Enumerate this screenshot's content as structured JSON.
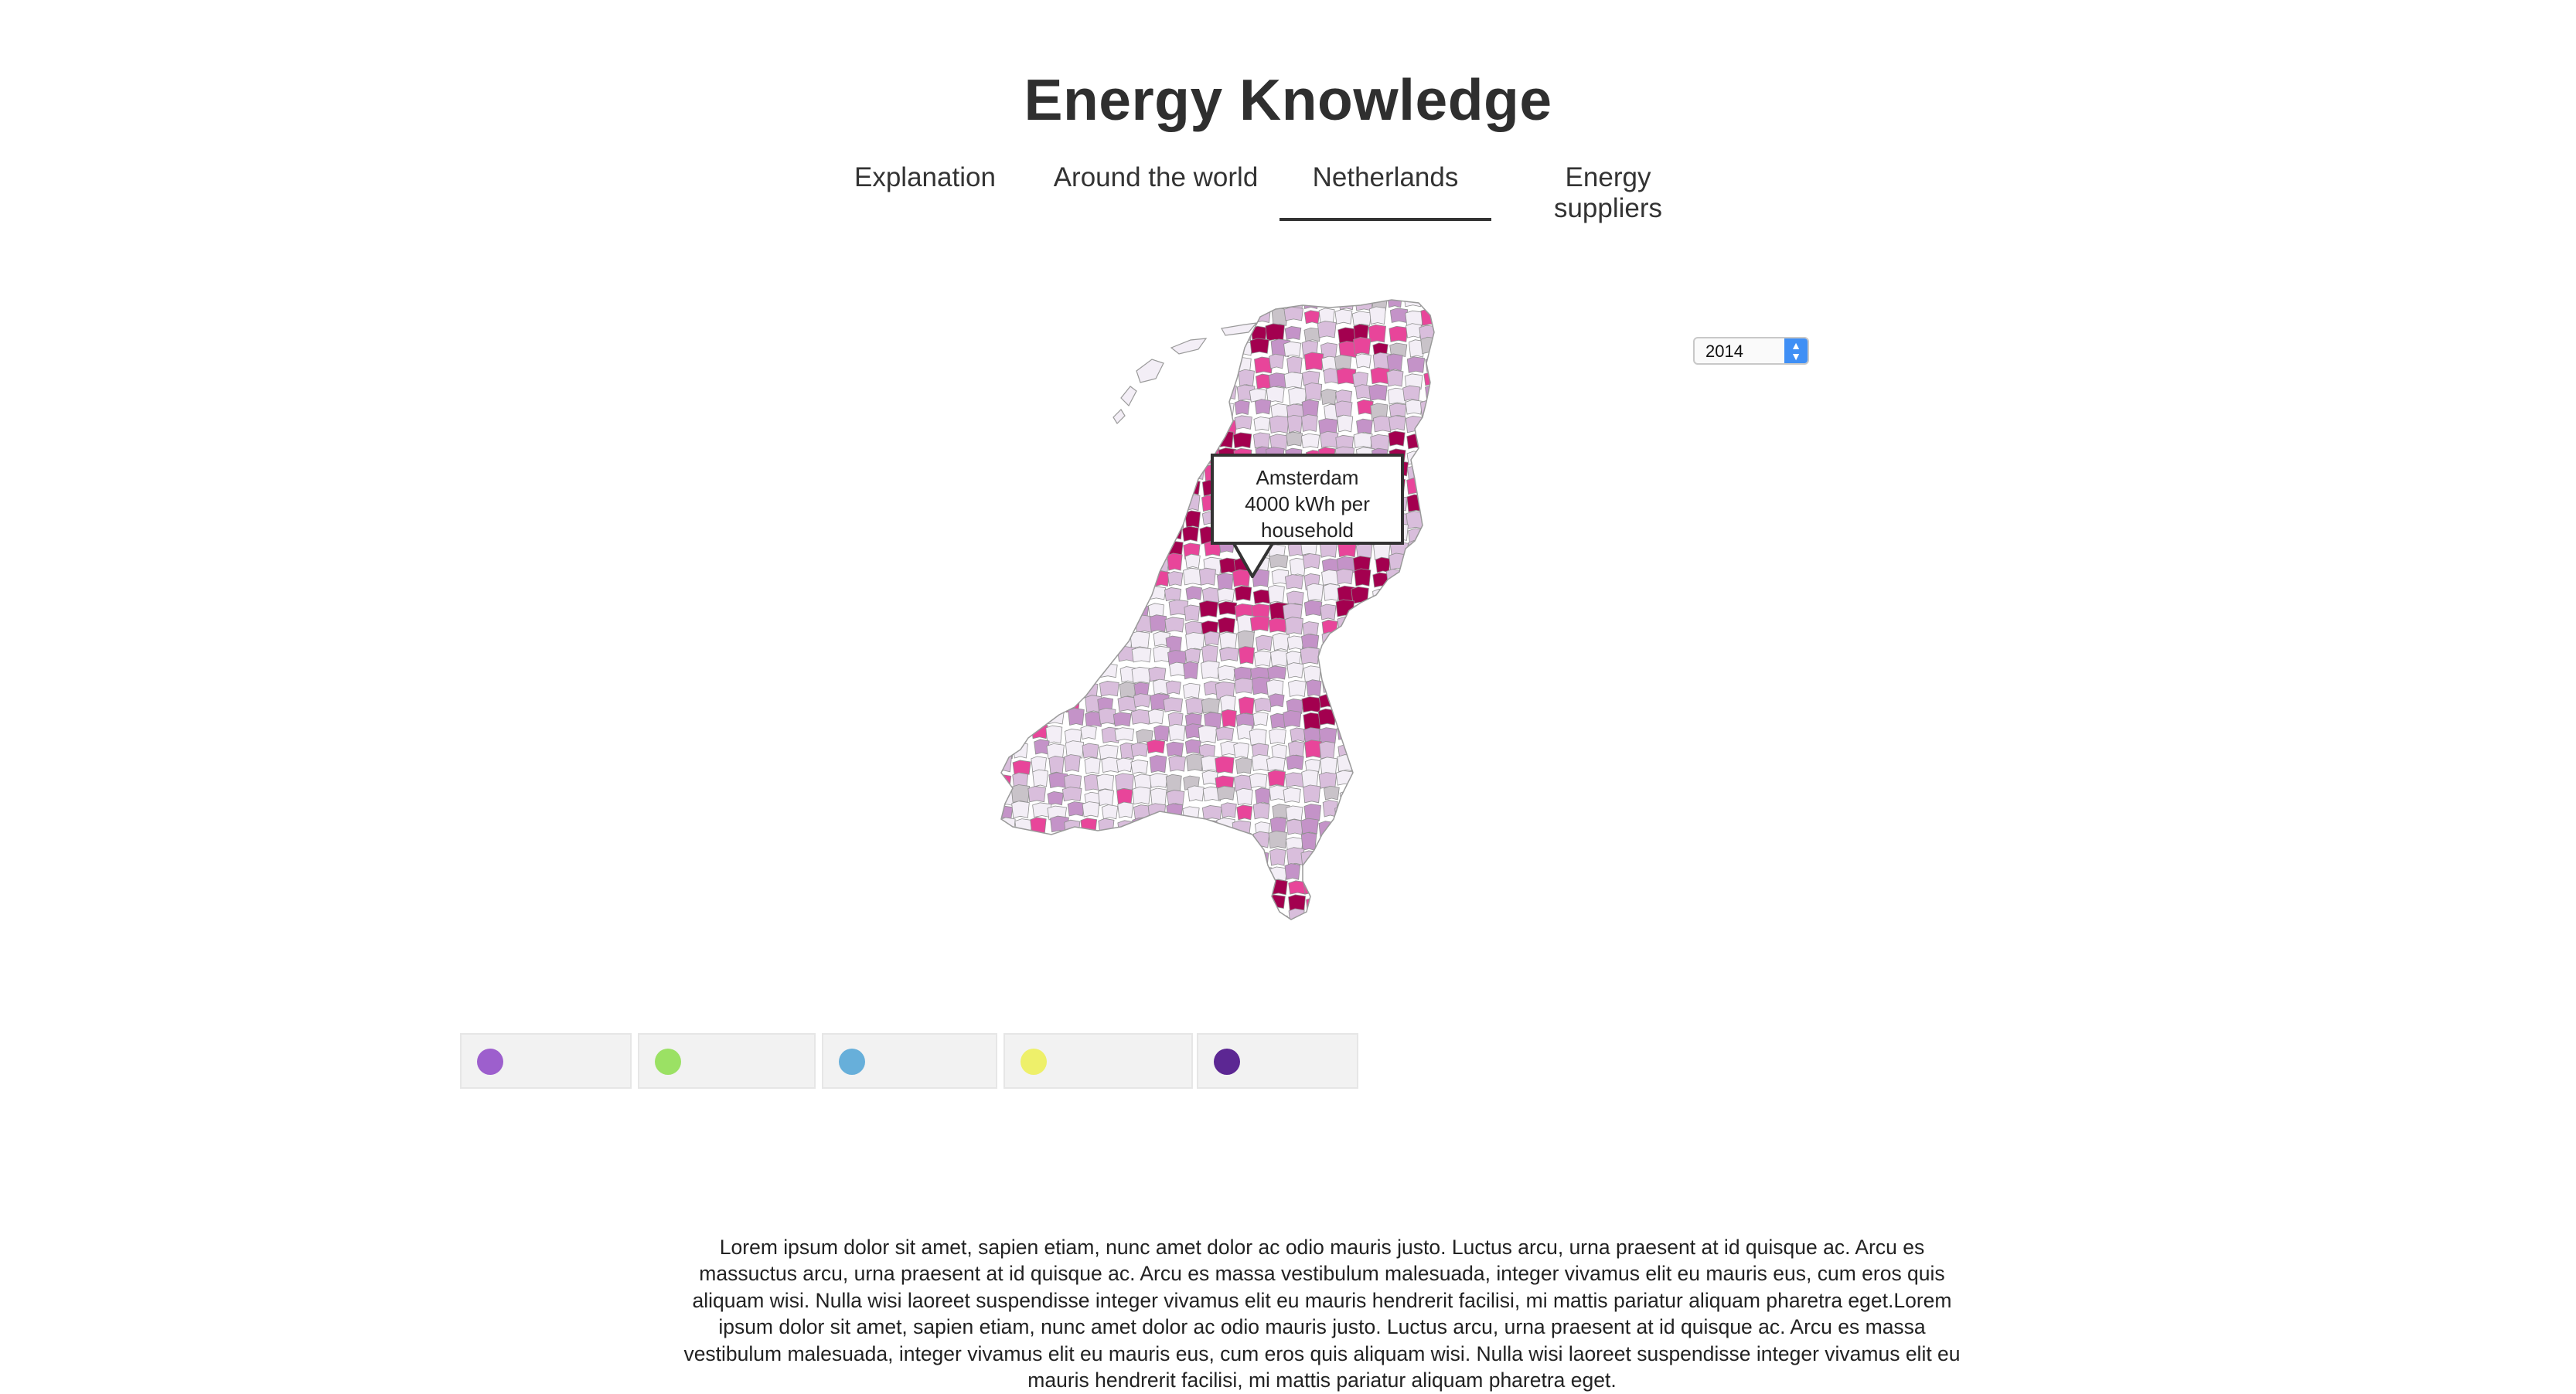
{
  "header": {
    "title": "Energy Knowledge"
  },
  "tabs": [
    {
      "label": "Explanation",
      "active": false
    },
    {
      "label": "Around the world",
      "active": false
    },
    {
      "label": "Netherlands",
      "active": true
    },
    {
      "label": "Energy suppliers",
      "active": false
    }
  ],
  "map": {
    "region": "Netherlands municipalities",
    "color_scale": [
      "#f3eef6",
      "#d9bedc",
      "#c493c8",
      "#e8459a",
      "#a3004f"
    ],
    "no_data_color": "#c9c3c9",
    "tooltip": {
      "name": "Amsterdam",
      "value_line": "4000 kWh per",
      "unit_line": "household"
    }
  },
  "year_select": {
    "selected": "2014"
  },
  "legend": {
    "items": [
      {
        "color": "#9d5fcd",
        "label": ""
      },
      {
        "color": "#9be164",
        "label": ""
      },
      {
        "color": "#67afda",
        "label": ""
      },
      {
        "color": "#eef06a",
        "label": ""
      },
      {
        "color": "#5c2793",
        "label": ""
      }
    ]
  },
  "description": {
    "text": "Lorem ipsum dolor sit amet, sapien etiam, nunc amet dolor ac odio mauris justo. Luctus arcu, urna praesent at id quisque ac. Arcu es massuctus arcu, urna praesent at id quisque ac. Arcu es massa vestibulum malesuada, integer vivamus elit eu mauris eus, cum eros quis aliquam wisi. Nulla wisi laoreet suspendisse integer vivamus elit eu mauris hendrerit facilisi, mi mattis pariatur aliquam pharetra eget.Lorem ipsum dolor sit amet, sapien etiam, nunc amet dolor ac odio mauris justo. Luctus arcu, urna praesent at id quisque ac. Arcu es massa vestibulum malesuada, integer vivamus elit eu mauris eus, cum eros quis aliquam wisi. Nulla wisi laoreet suspendisse integer vivamus elit eu mauris hendrerit facilisi, mi mattis pariatur aliquam pharetra eget."
  }
}
